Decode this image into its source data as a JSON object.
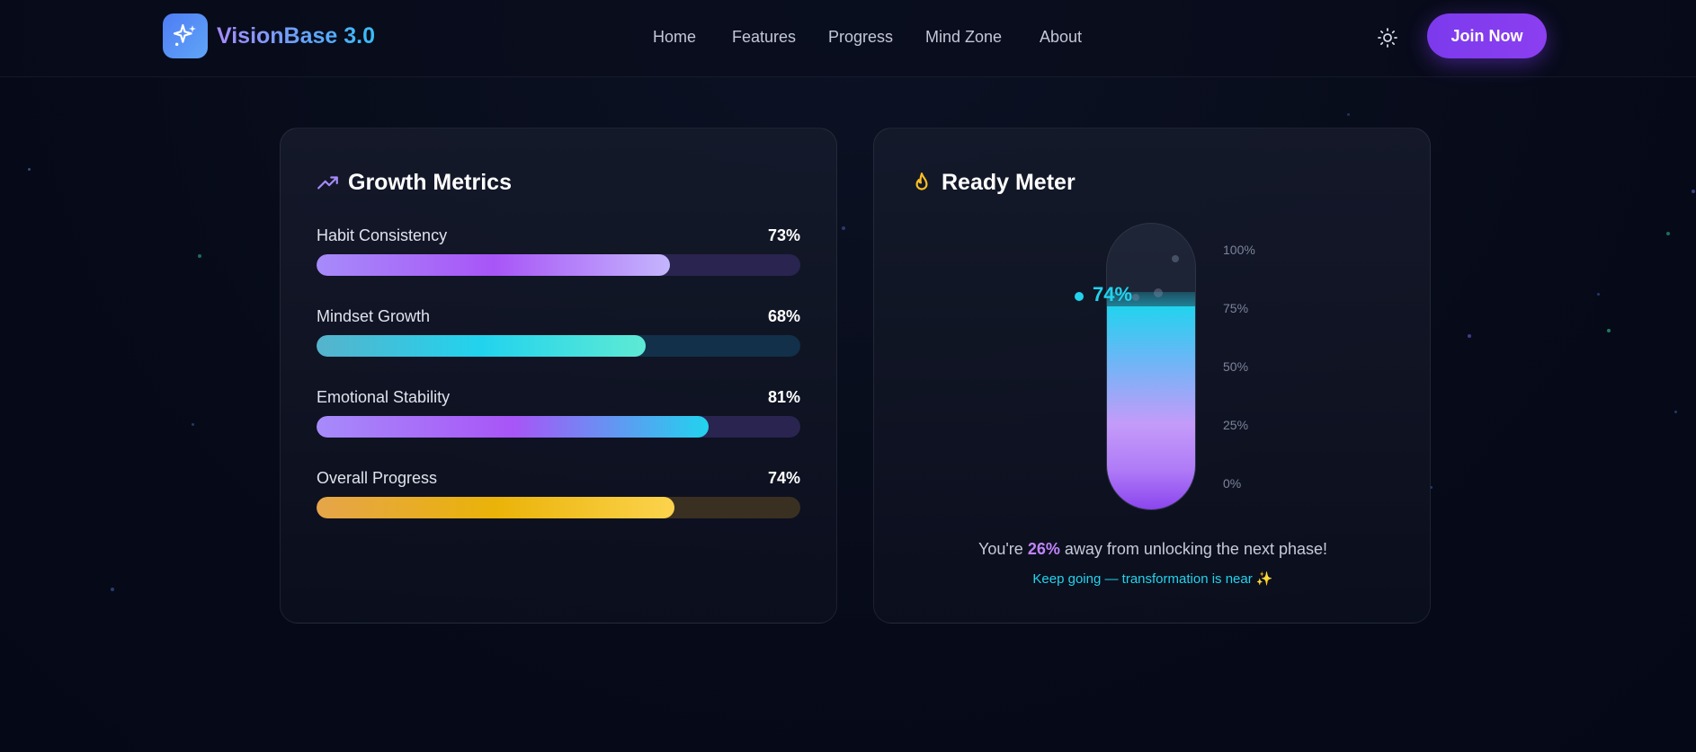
{
  "colors": {
    "background": "#070b19",
    "accent_purple": "#7c3aed",
    "accent_cyan": "#22d3ee",
    "accent_amber": "#fbbf24"
  },
  "header": {
    "logo_icon": "sparkles-icon",
    "brand": "VisionBase 3.0",
    "nav": [
      "Home",
      "Features",
      "Progress",
      "Mind Zone",
      "About"
    ],
    "theme_icon": "sun-icon",
    "join_label": "Join Now"
  },
  "growth": {
    "title": "Growth Metrics",
    "icon": "trending-up-icon",
    "metrics": [
      {
        "label": "Habit Consistency",
        "value": "73%",
        "percent": 73,
        "colors": [
          "#a78bfa",
          "#a855f7",
          "#c4b5fd"
        ],
        "track": "#2a2450"
      },
      {
        "label": "Mindset Growth",
        "value": "68%",
        "percent": 68,
        "colors": [
          "#56b3cc",
          "#22d3ee",
          "#5eead4"
        ],
        "track": "#123049"
      },
      {
        "label": "Emotional Stability",
        "value": "81%",
        "percent": 81,
        "colors": [
          "#a78bfa",
          "#a855f7",
          "#22d3ee"
        ],
        "track": "#2a2450"
      },
      {
        "label": "Overall Progress",
        "value": "74%",
        "percent": 74,
        "colors": [
          "#e5a54a",
          "#eab308",
          "#fcd34d"
        ],
        "track": "#3a3022"
      }
    ]
  },
  "meter": {
    "title": "Ready Meter",
    "icon": "flame-icon",
    "level_percent": 74,
    "value_label": "74%",
    "ticks": [
      "100%",
      "75%",
      "50%",
      "25%",
      "0%"
    ],
    "message_prefix": "You're ",
    "message_highlight": "26%",
    "message_suffix": " away from unlocking the next phase!",
    "sub_message": "Keep going — transformation is near ✨"
  }
}
